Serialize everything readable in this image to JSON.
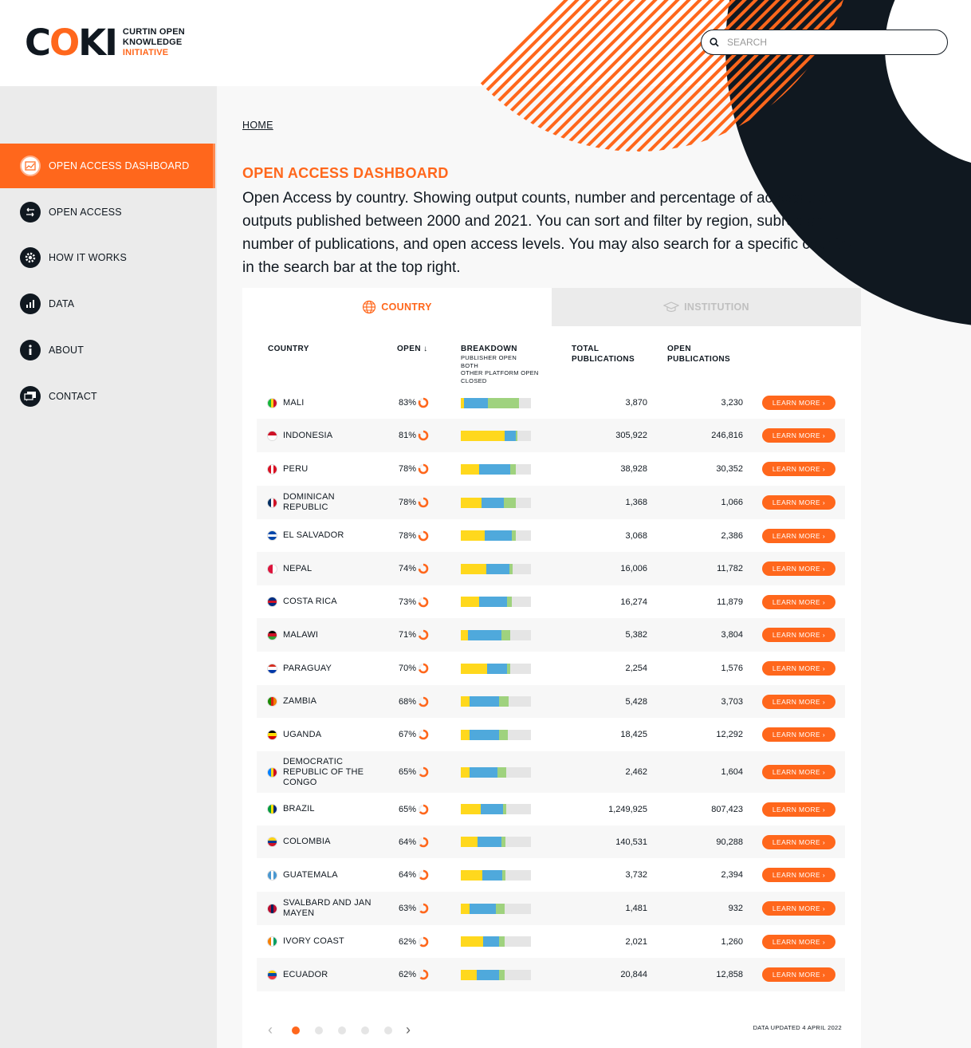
{
  "logo": {
    "word_left": "C",
    "word_mid": "O",
    "word_right": "KI",
    "line1": "CURTIN OPEN",
    "line2": "KNOWLEDGE",
    "line3": "INITIATIVE"
  },
  "search": {
    "placeholder": "SEARCH",
    "value": ""
  },
  "sidebar": {
    "items": [
      {
        "label": "OPEN ACCESS DASHBOARD",
        "icon": "chart-icon",
        "active": true
      },
      {
        "label": "OPEN ACCESS",
        "icon": "arrows-icon",
        "active": false
      },
      {
        "label": "HOW IT WORKS",
        "icon": "gear-icon",
        "active": false
      },
      {
        "label": "DATA",
        "icon": "bar-chart-icon",
        "active": false
      },
      {
        "label": "ABOUT",
        "icon": "info-icon",
        "active": false
      },
      {
        "label": "CONTACT",
        "icon": "chat-icon",
        "active": false
      }
    ]
  },
  "breadcrumb": "HOME",
  "page": {
    "title": "OPEN ACCESS DASHBOARD",
    "description": "Open Access by country. Showing output counts, number and percentage of accessible outputs published between 2000 and 2021. You can sort and filter by region, subregion, number of publications, and open access levels. You may also search for a specific country in the search bar at the top right."
  },
  "tabs": {
    "country": "COUNTRY",
    "institution": "INSTITUTION"
  },
  "table": {
    "headers": {
      "country": "COUNTRY",
      "open": "OPEN",
      "breakdown": "BREAKDOWN",
      "legend1": "PUBLISHER OPEN",
      "legend2": "BOTH",
      "legend3": "OTHER PLATFORM OPEN",
      "legend4": "CLOSED",
      "total1": "TOTAL",
      "total2": "PUBLICATIONS",
      "open1": "OPEN",
      "open2": "PUBLICATIONS"
    },
    "colors": {
      "publisher": "#ffd81d",
      "both": "#4fa9dc",
      "other": "#9fd27e",
      "closed": "#e5e5e5",
      "accent": "#ff671c"
    },
    "learn_more": "LEARN MORE ›",
    "rows": [
      {
        "name": "MALI",
        "open": "83%",
        "p": 0.83,
        "b": [
          0.05,
          0.34,
          0.44
        ],
        "total": "3,870",
        "opn": "3,230",
        "flag": [
          "#14b53a",
          "#fcd116",
          "#ce1126"
        ]
      },
      {
        "name": "INDONESIA",
        "open": "81%",
        "p": 0.81,
        "b": [
          0.63,
          0.15,
          0.03
        ],
        "total": "305,922",
        "opn": "246,816",
        "flag": [
          "#ce1126",
          "#ffffff"
        ],
        "h": true
      },
      {
        "name": "PERU",
        "open": "78%",
        "p": 0.78,
        "b": [
          0.26,
          0.45,
          0.07
        ],
        "total": "38,928",
        "opn": "30,352",
        "flag": [
          "#d91023",
          "#ffffff",
          "#d91023"
        ]
      },
      {
        "name": "DOMINICAN REPUBLIC",
        "open": "78%",
        "p": 0.78,
        "b": [
          0.29,
          0.32,
          0.17
        ],
        "total": "1,368",
        "opn": "1,066",
        "flag": [
          "#002d62",
          "#ffffff",
          "#ce1126"
        ]
      },
      {
        "name": "EL SALVADOR",
        "open": "78%",
        "p": 0.78,
        "b": [
          0.34,
          0.39,
          0.05
        ],
        "total": "3,068",
        "opn": "2,386",
        "flag": [
          "#0047ab",
          "#ffffff",
          "#0047ab"
        ],
        "h": true
      },
      {
        "name": "NEPAL",
        "open": "74%",
        "p": 0.74,
        "b": [
          0.36,
          0.33,
          0.05
        ],
        "total": "16,006",
        "opn": "11,782",
        "flag": [
          "#dc143c",
          "#ffffff"
        ]
      },
      {
        "name": "COSTA RICA",
        "open": "73%",
        "p": 0.73,
        "b": [
          0.26,
          0.4,
          0.07
        ],
        "total": "16,274",
        "opn": "11,879",
        "flag": [
          "#002b7f",
          "#ce1126",
          "#002b7f"
        ],
        "h": true
      },
      {
        "name": "MALAWI",
        "open": "71%",
        "p": 0.71,
        "b": [
          0.1,
          0.48,
          0.13
        ],
        "total": "5,382",
        "opn": "3,804",
        "flag": [
          "#000000",
          "#ce1126",
          "#339e35"
        ],
        "h": true
      },
      {
        "name": "PARAGUAY",
        "open": "70%",
        "p": 0.7,
        "b": [
          0.38,
          0.28,
          0.04
        ],
        "total": "2,254",
        "opn": "1,576",
        "flag": [
          "#d52b1e",
          "#ffffff",
          "#0038a8"
        ],
        "h": true
      },
      {
        "name": "ZAMBIA",
        "open": "68%",
        "p": 0.68,
        "b": [
          0.13,
          0.42,
          0.13
        ],
        "total": "5,428",
        "opn": "3,703",
        "flag": [
          "#198a00",
          "#de2010",
          "#ef7d00"
        ]
      },
      {
        "name": "UGANDA",
        "open": "67%",
        "p": 0.67,
        "b": [
          0.12,
          0.43,
          0.12
        ],
        "total": "18,425",
        "opn": "12,292",
        "flag": [
          "#000000",
          "#fcdc04",
          "#d90000"
        ],
        "h": true
      },
      {
        "name": "DEMOCRATIC REPUBLIC OF THE CONGO",
        "open": "65%",
        "p": 0.65,
        "b": [
          0.12,
          0.4,
          0.13
        ],
        "total": "2,462",
        "opn": "1,604",
        "flag": [
          "#007fff",
          "#f7d618",
          "#ce1021"
        ]
      },
      {
        "name": "BRAZIL",
        "open": "65%",
        "p": 0.65,
        "b": [
          0.28,
          0.32,
          0.05
        ],
        "total": "1,249,925",
        "opn": "807,423",
        "flag": [
          "#009c3b",
          "#ffdf00",
          "#002776"
        ]
      },
      {
        "name": "COLOMBIA",
        "open": "64%",
        "p": 0.64,
        "b": [
          0.24,
          0.34,
          0.06
        ],
        "total": "140,531",
        "opn": "90,288",
        "flag": [
          "#fcd116",
          "#003893",
          "#ce1126"
        ],
        "h": true
      },
      {
        "name": "GUATEMALA",
        "open": "64%",
        "p": 0.64,
        "b": [
          0.31,
          0.28,
          0.05
        ],
        "total": "3,732",
        "opn": "2,394",
        "flag": [
          "#4997d0",
          "#ffffff",
          "#4997d0"
        ]
      },
      {
        "name": "SVALBARD AND JAN MAYEN",
        "open": "63%",
        "p": 0.63,
        "b": [
          0.13,
          0.37,
          0.13
        ],
        "total": "1,481",
        "opn": "932",
        "flag": [
          "#ba0c2f",
          "#00205b",
          "#ba0c2f"
        ]
      },
      {
        "name": "IVORY COAST",
        "open": "62%",
        "p": 0.62,
        "b": [
          0.32,
          0.23,
          0.07
        ],
        "total": "2,021",
        "opn": "1,260",
        "flag": [
          "#f77f00",
          "#ffffff",
          "#009e60"
        ]
      },
      {
        "name": "ECUADOR",
        "open": "62%",
        "p": 0.62,
        "b": [
          0.23,
          0.31,
          0.08
        ],
        "total": "20,844",
        "opn": "12,858",
        "flag": [
          "#ffd100",
          "#034ea2",
          "#ef3340"
        ],
        "h": true
      }
    ]
  },
  "pager": {
    "pages": 5,
    "current": 1
  },
  "updated": "DATA UPDATED 4 APRIL 2022"
}
